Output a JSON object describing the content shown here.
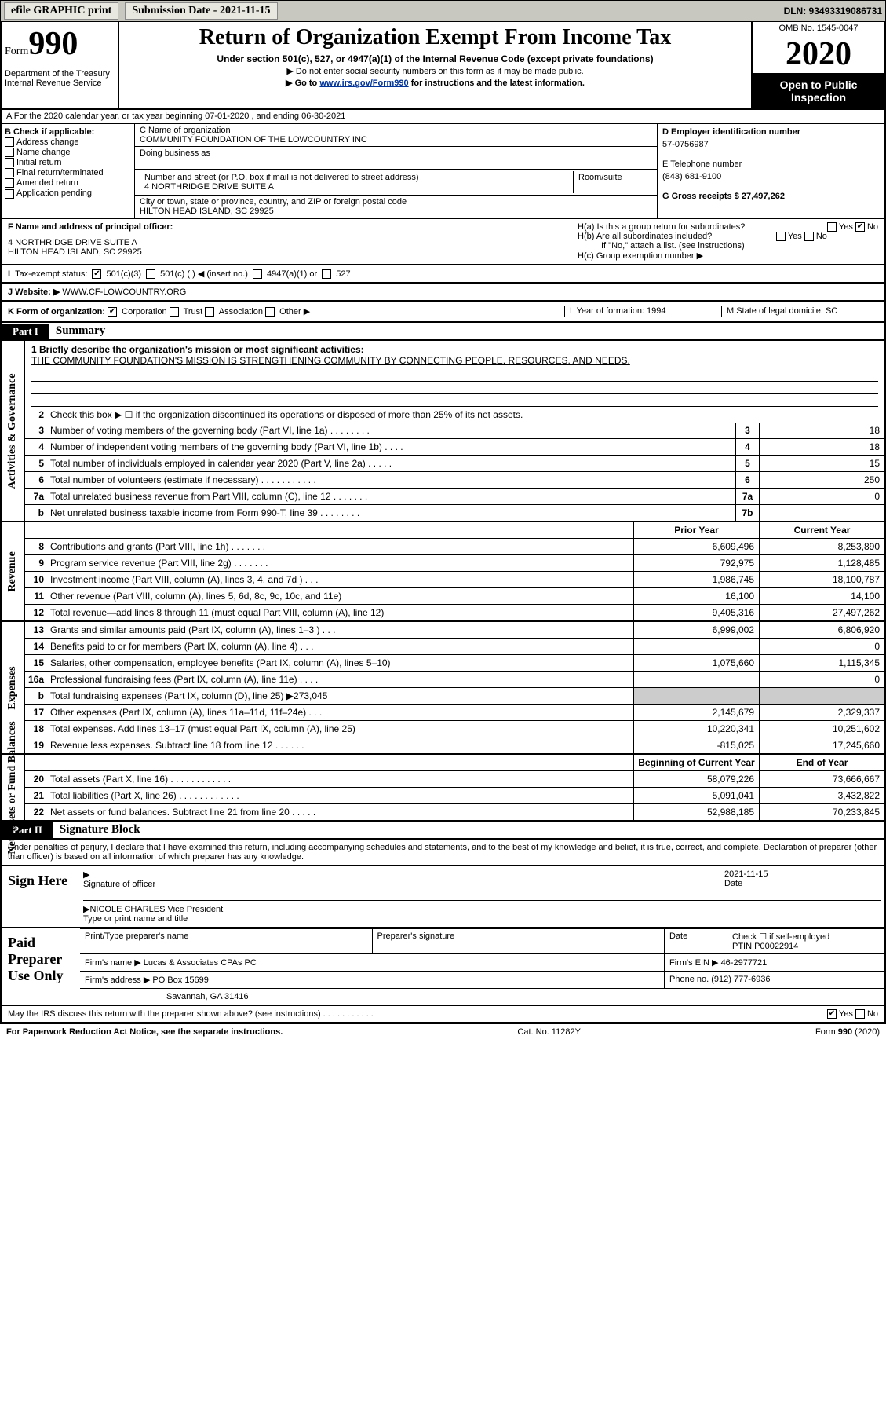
{
  "topbar": {
    "efile": "efile GRAPHIC print",
    "submission_label": "Submission Date - 2021-11-15",
    "dln": "DLN: 93493319086731"
  },
  "header": {
    "form_word": "Form",
    "form_num": "990",
    "dept": "Department of the Treasury Internal Revenue Service",
    "title": "Return of Organization Exempt From Income Tax",
    "subtitle": "Under section 501(c), 527, or 4947(a)(1) of the Internal Revenue Code (except private foundations)",
    "note1": "▶ Do not enter social security numbers on this form as it may be made public.",
    "note2_pre": "▶ Go to ",
    "note2_link": "www.irs.gov/Form990",
    "note2_post": " for instructions and the latest information.",
    "omb": "OMB No. 1545-0047",
    "year": "2020",
    "open": "Open to Public Inspection"
  },
  "row_a": "A For the 2020 calendar year, or tax year beginning 07-01-2020    , and ending 06-30-2021",
  "box_b": {
    "label": "B Check if applicable:",
    "items": [
      "Address change",
      "Name change",
      "Initial return",
      "Final return/terminated",
      "Amended return",
      "Application pending"
    ]
  },
  "box_c": {
    "label": "C Name of organization",
    "name": "COMMUNITY FOUNDATION OF THE LOWCOUNTRY INC",
    "dba_label": "Doing business as",
    "street_label": "Number and street (or P.O. box if mail is not delivered to street address)",
    "room_label": "Room/suite",
    "street": "4 NORTHRIDGE DRIVE SUITE A",
    "city_label": "City or town, state or province, country, and ZIP or foreign postal code",
    "city": "HILTON HEAD ISLAND, SC  29925"
  },
  "box_d": {
    "label": "D Employer identification number",
    "value": "57-0756987"
  },
  "box_e": {
    "label": "E Telephone number",
    "value": "(843) 681-9100"
  },
  "box_g": {
    "label": "G Gross receipts $ 27,497,262"
  },
  "box_f": {
    "label": "F  Name and address of principal officer:",
    "addr1": "4 NORTHRIDGE DRIVE SUITE A",
    "addr2": "HILTON HEAD ISLAND, SC  29925"
  },
  "box_h": {
    "a": "H(a)  Is this a group return for subordinates?",
    "b": "H(b)  Are all subordinates included?",
    "b_note": "If \"No,\" attach a list. (see instructions)",
    "c": "H(c)  Group exemption number ▶"
  },
  "row_i": {
    "label": "Tax-exempt status:",
    "opts": [
      "501(c)(3)",
      "501(c) (   ) ◀ (insert no.)",
      "4947(a)(1) or",
      "527"
    ]
  },
  "row_j": {
    "label": "J    Website: ▶",
    "value": "WWW.CF-LOWCOUNTRY.ORG"
  },
  "row_k": {
    "label": "K Form of organization:",
    "opts": [
      "Corporation",
      "Trust",
      "Association",
      "Other ▶"
    ],
    "l": "L Year of formation: 1994",
    "m": "M State of legal domicile: SC"
  },
  "part1": {
    "tag": "Part I",
    "title": "Summary"
  },
  "summary": {
    "line1_label": "1   Briefly describe the organization's mission or most significant activities:",
    "line1_text": "THE COMMUNITY FOUNDATION'S MISSION IS STRENGTHENING COMMUNITY BY CONNECTING PEOPLE, RESOURCES, AND NEEDS.",
    "line2": "Check this box ▶ ☐  if the organization discontinued its operations or disposed of more than 25% of its net assets.",
    "gov_lines": [
      {
        "n": "3",
        "d": "Number of voting members of the governing body (Part VI, line 1a)   .    .    .    .    .    .    .    .",
        "b": "3",
        "v": "18"
      },
      {
        "n": "4",
        "d": "Number of independent voting members of the governing body (Part VI, line 1b)   .    .    .    .",
        "b": "4",
        "v": "18"
      },
      {
        "n": "5",
        "d": "Total number of individuals employed in calendar year 2020 (Part V, line 2a)   .    .    .    .    .",
        "b": "5",
        "v": "15"
      },
      {
        "n": "6",
        "d": "Total number of volunteers (estimate if necessary)   .    .    .    .    .    .    .    .    .    .    .",
        "b": "6",
        "v": "250"
      },
      {
        "n": "7a",
        "d": "Total unrelated business revenue from Part VIII, column (C), line 12   .    .    .    .    .    .    .",
        "b": "7a",
        "v": "0"
      },
      {
        "n": "b",
        "d": "Net unrelated business taxable income from Form 990-T, line 39   .    .    .    .    .    .    .    .",
        "b": "7b",
        "v": ""
      }
    ],
    "col_hdrs": {
      "prior": "Prior Year",
      "current": "Current Year"
    },
    "revenue": [
      {
        "n": "8",
        "d": "Contributions and grants (Part VIII, line 1h)   .    .    .    .    .    .    .",
        "p": "6,609,496",
        "c": "8,253,890"
      },
      {
        "n": "9",
        "d": "Program service revenue (Part VIII, line 2g)   .    .    .    .    .    .    .",
        "p": "792,975",
        "c": "1,128,485"
      },
      {
        "n": "10",
        "d": "Investment income (Part VIII, column (A), lines 3, 4, and 7d )   .    .    .",
        "p": "1,986,745",
        "c": "18,100,787"
      },
      {
        "n": "11",
        "d": "Other revenue (Part VIII, column (A), lines 5, 6d, 8c, 9c, 10c, and 11e)",
        "p": "16,100",
        "c": "14,100"
      },
      {
        "n": "12",
        "d": "Total revenue—add lines 8 through 11 (must equal Part VIII, column (A), line 12)",
        "p": "9,405,316",
        "c": "27,497,262"
      }
    ],
    "expenses": [
      {
        "n": "13",
        "d": "Grants and similar amounts paid (Part IX, column (A), lines 1–3 )   .    .    .",
        "p": "6,999,002",
        "c": "6,806,920"
      },
      {
        "n": "14",
        "d": "Benefits paid to or for members (Part IX, column (A), line 4)   .    .    .",
        "p": "",
        "c": "0"
      },
      {
        "n": "15",
        "d": "Salaries, other compensation, employee benefits (Part IX, column (A), lines 5–10)",
        "p": "1,075,660",
        "c": "1,115,345"
      },
      {
        "n": "16a",
        "d": "Professional fundraising fees (Part IX, column (A), line 11e)   .    .    .    .",
        "p": "",
        "c": "0"
      },
      {
        "n": "b",
        "d": "Total fundraising expenses (Part IX, column (D), line 25) ▶273,045",
        "p": null,
        "c": null
      },
      {
        "n": "17",
        "d": "Other expenses (Part IX, column (A), lines 11a–11d, 11f–24e)   .    .    .",
        "p": "2,145,679",
        "c": "2,329,337"
      },
      {
        "n": "18",
        "d": "Total expenses. Add lines 13–17 (must equal Part IX, column (A), line 25)",
        "p": "10,220,341",
        "c": "10,251,602"
      },
      {
        "n": "19",
        "d": "Revenue less expenses. Subtract line 18 from line 12   .    .    .    .    .    .",
        "p": "-815,025",
        "c": "17,245,660"
      }
    ],
    "net_hdrs": {
      "begin": "Beginning of Current Year",
      "end": "End of Year"
    },
    "net": [
      {
        "n": "20",
        "d": "Total assets (Part X, line 16)   .    .    .    .    .    .    .    .    .    .    .    .",
        "p": "58,079,226",
        "c": "73,666,667"
      },
      {
        "n": "21",
        "d": "Total liabilities (Part X, line 26)   .    .    .    .    .    .    .    .    .    .    .    .",
        "p": "5,091,041",
        "c": "3,432,822"
      },
      {
        "n": "22",
        "d": "Net assets or fund balances. Subtract line 21 from line 20   .    .    .    .    .",
        "p": "52,988,185",
        "c": "70,233,845"
      }
    ]
  },
  "part2": {
    "tag": "Part II",
    "title": "Signature Block"
  },
  "sig": {
    "perjury": "Under penalties of perjury, I declare that I have examined this return, including accompanying schedules and statements, and to the best of my knowledge and belief, it is true, correct, and complete. Declaration of preparer (other than officer) is based on all information of which preparer has any knowledge.",
    "sign_here": "Sign Here",
    "officer_sig": "Signature of officer",
    "date": "2021-11-15",
    "date_label": "Date",
    "officer_name": "NICOLE CHARLES  Vice President",
    "officer_name_label": "Type or print name and title"
  },
  "prep": {
    "label": "Paid Preparer Use Only",
    "h1": "Print/Type preparer's name",
    "h2": "Preparer's signature",
    "h3": "Date",
    "h4_check": "Check ☐  if self-employed",
    "h4_ptin": "PTIN",
    "ptin": "P00022914",
    "firm_label": "Firm's name    ▶",
    "firm": "Lucas & Associates CPAs PC",
    "ein_label": "Firm's EIN ▶",
    "ein": "46-2977721",
    "addr_label": "Firm's address ▶",
    "addr1": "PO Box 15699",
    "addr2": "Savannah, GA  31416",
    "phone_label": "Phone no.",
    "phone": "(912) 777-6936"
  },
  "discuss": "May the IRS discuss this return with the preparer shown above? (see instructions)   .    .    .    .    .    .    .    .    .    .    .",
  "footer": {
    "left": "For Paperwork Reduction Act Notice, see the separate instructions.",
    "mid": "Cat. No. 11282Y",
    "right": "Form 990 (2020)"
  },
  "labels": {
    "vlabel_gov": "Activities & Governance",
    "vlabel_rev": "Revenue",
    "vlabel_exp": "Expenses",
    "vlabel_net": "Net Assets or Fund Balances",
    "yes": "Yes",
    "no": "No"
  }
}
